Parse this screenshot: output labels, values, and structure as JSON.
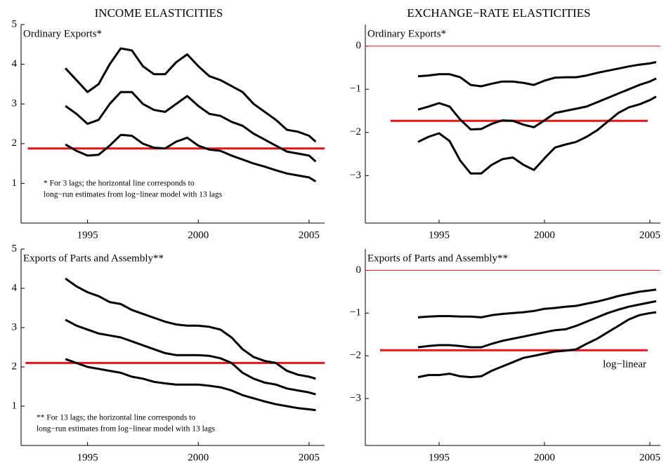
{
  "chart_data": [
    {
      "type": "line",
      "title": "INCOME ELASTICITIES",
      "label": "Ordinary Exports*",
      "note": [
        "* For 3 lags; the horizontal line corresponds to",
        "long−run estimates from log−linear model with 13 lags"
      ],
      "xlim": [
        1992,
        2005.7
      ],
      "xticks": [
        1995,
        2000,
        2005
      ],
      "ylim": [
        0,
        5
      ],
      "yticks": [
        1,
        2,
        3,
        4,
        5
      ],
      "x": [
        1994,
        1994.5,
        1995,
        1995.5,
        1996,
        1996.5,
        1997,
        1997.5,
        1998,
        1998.5,
        1999,
        1999.5,
        2000,
        2000.5,
        2001,
        2001.5,
        2002,
        2002.5,
        2003,
        2003.5,
        2004,
        2004.5,
        2005,
        2005.3
      ],
      "series": [
        {
          "color": "#000000",
          "values": [
            3.9,
            3.6,
            3.3,
            3.5,
            4.0,
            4.4,
            4.35,
            3.95,
            3.75,
            3.75,
            4.05,
            4.25,
            3.95,
            3.7,
            3.6,
            3.45,
            3.3,
            3.0,
            2.8,
            2.6,
            2.35,
            2.3,
            2.2,
            2.05
          ]
        },
        {
          "color": "#000000",
          "values": [
            2.95,
            2.75,
            2.5,
            2.6,
            3.0,
            3.3,
            3.3,
            3.0,
            2.85,
            2.8,
            3.0,
            3.2,
            2.95,
            2.75,
            2.7,
            2.55,
            2.45,
            2.25,
            2.1,
            1.95,
            1.8,
            1.75,
            1.7,
            1.55
          ]
        },
        {
          "color": "#000000",
          "values": [
            1.98,
            1.82,
            1.7,
            1.72,
            1.95,
            2.22,
            2.2,
            2.0,
            1.9,
            1.88,
            2.05,
            2.15,
            1.95,
            1.85,
            1.82,
            1.7,
            1.6,
            1.5,
            1.42,
            1.33,
            1.25,
            1.2,
            1.15,
            1.05
          ]
        }
      ],
      "hline": {
        "value": 1.88,
        "color": "#e8141b",
        "x": [
          1992.3,
          2005.7
        ]
      }
    },
    {
      "type": "line",
      "title": "EXCHANGE−RATE ELASTICITIES",
      "label": "Ordinary Exports*",
      "xlim": [
        1991.5,
        2005.5
      ],
      "xticks": [
        1995,
        2000,
        2005
      ],
      "ylim": [
        -4.1,
        0.5
      ],
      "yticks": [
        {
          "value": -3,
          "label": "−3"
        },
        {
          "value": -2,
          "label": "−2"
        },
        {
          "value": -1,
          "label": "−1"
        },
        0
      ],
      "x": [
        1994,
        1994.5,
        1995,
        1995.5,
        1996,
        1996.5,
        1997,
        1997.5,
        1998,
        1998.5,
        1999,
        1999.5,
        2000,
        2000.5,
        2001,
        2001.5,
        2002,
        2002.5,
        2003,
        2003.5,
        2004,
        2004.5,
        2005,
        2005.3
      ],
      "series": [
        {
          "color": "#000000",
          "values": [
            -0.7,
            -0.68,
            -0.65,
            -0.65,
            -0.72,
            -0.9,
            -0.93,
            -0.87,
            -0.82,
            -0.82,
            -0.85,
            -0.9,
            -0.8,
            -0.73,
            -0.72,
            -0.72,
            -0.68,
            -0.62,
            -0.57,
            -0.52,
            -0.47,
            -0.43,
            -0.4,
            -0.37
          ]
        },
        {
          "color": "#000000",
          "values": [
            -1.47,
            -1.4,
            -1.32,
            -1.4,
            -1.7,
            -1.93,
            -1.92,
            -1.8,
            -1.72,
            -1.73,
            -1.82,
            -1.88,
            -1.72,
            -1.55,
            -1.5,
            -1.45,
            -1.4,
            -1.3,
            -1.2,
            -1.1,
            -1.0,
            -0.9,
            -0.82,
            -0.75
          ]
        },
        {
          "color": "#000000",
          "values": [
            -2.22,
            -2.1,
            -2.02,
            -2.2,
            -2.65,
            -2.95,
            -2.95,
            -2.75,
            -2.62,
            -2.58,
            -2.75,
            -2.87,
            -2.6,
            -2.35,
            -2.28,
            -2.22,
            -2.1,
            -1.95,
            -1.75,
            -1.55,
            -1.42,
            -1.35,
            -1.25,
            -1.17
          ]
        }
      ],
      "hline": {
        "value": -1.73,
        "color": "#e8141b",
        "x": [
          1992.7,
          2004.9
        ]
      },
      "zero_line": {
        "value": 0,
        "color": "#e8141b"
      }
    },
    {
      "type": "line",
      "label": "Exports of Parts and Assembly**",
      "note": [
        "** For 13 lags; the horizontal line corresponds to",
        "long−run estimates from log−linear model with 13 lags"
      ],
      "xlim": [
        1992,
        2005.7
      ],
      "xticks": [
        1995,
        2000,
        2005
      ],
      "ylim": [
        0,
        5
      ],
      "yticks": [
        1,
        2,
        3,
        4,
        5
      ],
      "x": [
        1994,
        1994.5,
        1995,
        1995.5,
        1996,
        1996.5,
        1997,
        1997.5,
        1998,
        1998.5,
        1999,
        1999.5,
        2000,
        2000.5,
        2001,
        2001.5,
        2002,
        2002.5,
        2003,
        2003.5,
        2004,
        2004.5,
        2005,
        2005.3
      ],
      "series": [
        {
          "color": "#000000",
          "values": [
            4.25,
            4.05,
            3.9,
            3.8,
            3.65,
            3.6,
            3.45,
            3.35,
            3.25,
            3.15,
            3.08,
            3.05,
            3.05,
            3.02,
            2.95,
            2.75,
            2.45,
            2.25,
            2.15,
            2.1,
            1.9,
            1.8,
            1.75,
            1.7
          ]
        },
        {
          "color": "#000000",
          "values": [
            3.2,
            3.05,
            2.95,
            2.85,
            2.8,
            2.75,
            2.65,
            2.55,
            2.45,
            2.35,
            2.3,
            2.3,
            2.3,
            2.28,
            2.22,
            2.1,
            1.85,
            1.7,
            1.6,
            1.55,
            1.45,
            1.4,
            1.35,
            1.3
          ]
        },
        {
          "color": "#000000",
          "values": [
            2.2,
            2.1,
            2.0,
            1.95,
            1.9,
            1.85,
            1.75,
            1.7,
            1.62,
            1.58,
            1.55,
            1.55,
            1.55,
            1.52,
            1.48,
            1.4,
            1.28,
            1.2,
            1.12,
            1.05,
            1.0,
            0.95,
            0.92,
            0.9
          ]
        }
      ],
      "hline": {
        "value": 2.1,
        "color": "#e8141b",
        "x": [
          1992.2,
          2005.7
        ]
      }
    },
    {
      "type": "line",
      "label": "Exports of Parts and Assembly**",
      "annotation": "log−linear",
      "xlim": [
        1991.5,
        2005.5
      ],
      "xticks": [
        1995,
        2000,
        2005
      ],
      "ylim": [
        -4.1,
        0.5
      ],
      "yticks": [
        {
          "value": -3,
          "label": "−3"
        },
        {
          "value": -2,
          "label": "−2"
        },
        {
          "value": -1,
          "label": "−1"
        },
        0
      ],
      "x": [
        1994,
        1994.5,
        1995,
        1995.5,
        1996,
        1996.5,
        1997,
        1997.5,
        1998,
        1998.5,
        1999,
        1999.5,
        2000,
        2000.5,
        2001,
        2001.5,
        2002,
        2002.5,
        2003,
        2003.5,
        2004,
        2004.5,
        2005,
        2005.3
      ],
      "series": [
        {
          "color": "#000000",
          "values": [
            -1.1,
            -1.08,
            -1.07,
            -1.07,
            -1.08,
            -1.08,
            -1.1,
            -1.05,
            -1.02,
            -1.0,
            -0.98,
            -0.95,
            -0.9,
            -0.88,
            -0.85,
            -0.83,
            -0.78,
            -0.73,
            -0.67,
            -0.6,
            -0.55,
            -0.5,
            -0.47,
            -0.45
          ]
        },
        {
          "color": "#000000",
          "values": [
            -1.8,
            -1.77,
            -1.75,
            -1.75,
            -1.77,
            -1.8,
            -1.8,
            -1.72,
            -1.65,
            -1.6,
            -1.55,
            -1.5,
            -1.45,
            -1.4,
            -1.38,
            -1.3,
            -1.2,
            -1.1,
            -1.0,
            -0.92,
            -0.85,
            -0.8,
            -0.75,
            -0.72
          ]
        },
        {
          "color": "#000000",
          "values": [
            -2.5,
            -2.45,
            -2.45,
            -2.42,
            -2.48,
            -2.5,
            -2.48,
            -2.35,
            -2.25,
            -2.15,
            -2.05,
            -2.0,
            -1.95,
            -1.9,
            -1.88,
            -1.85,
            -1.72,
            -1.6,
            -1.45,
            -1.3,
            -1.15,
            -1.05,
            -1.0,
            -0.98
          ]
        }
      ],
      "hline": {
        "value": -1.87,
        "color": "#e8141b",
        "x": [
          1992.2,
          2004.9
        ]
      },
      "zero_line": {
        "value": 0,
        "color": "#e8141b"
      }
    }
  ]
}
